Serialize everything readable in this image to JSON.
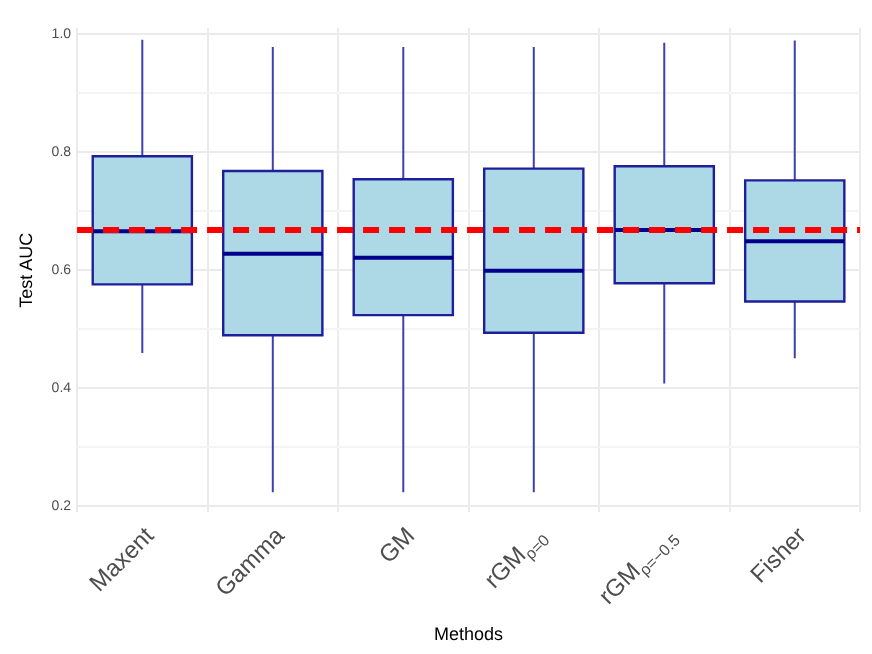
{
  "chart_data": {
    "type": "box",
    "xlabel": "Methods",
    "ylabel": "Test AUC",
    "categories": [
      "Maxent",
      "Gamma",
      "GM",
      "rGM$_{ρ=0}$",
      "rGM$_{ρ=−0.5}$",
      "Fisher"
    ],
    "boxes": [
      {
        "low": 0.46,
        "q1": 0.576,
        "median": 0.666,
        "q3": 0.793,
        "high": 0.99
      },
      {
        "low": 0.224,
        "q1": 0.49,
        "median": 0.628,
        "q3": 0.768,
        "high": 0.978
      },
      {
        "low": 0.224,
        "q1": 0.524,
        "median": 0.621,
        "q3": 0.754,
        "high": 0.978
      },
      {
        "low": 0.224,
        "q1": 0.494,
        "median": 0.599,
        "q3": 0.772,
        "high": 0.978
      },
      {
        "low": 0.408,
        "q1": 0.578,
        "median": 0.668,
        "q3": 0.776,
        "high": 0.985
      },
      {
        "low": 0.451,
        "q1": 0.547,
        "median": 0.649,
        "q3": 0.752,
        "high": 0.989
      }
    ],
    "color": "#add8e6",
    "ylim": [
      0.19,
      1.01
    ],
    "yticks": [
      0.2,
      {
        "value": 0.3,
        "label": null
      },
      0.4,
      {
        "value": 0.5,
        "label": null
      },
      0.6,
      {
        "value": 0.7,
        "label": null
      },
      0.8,
      {
        "value": 0.9,
        "label": null
      },
      {
        "value": 1,
        "label": "1.0"
      }
    ],
    "ref_lines": [
      {
        "axis": "y",
        "value": 0.668,
        "color": "#ff0000",
        "line_style": "dashed"
      }
    ],
    "grid": true,
    "legend": false
  }
}
